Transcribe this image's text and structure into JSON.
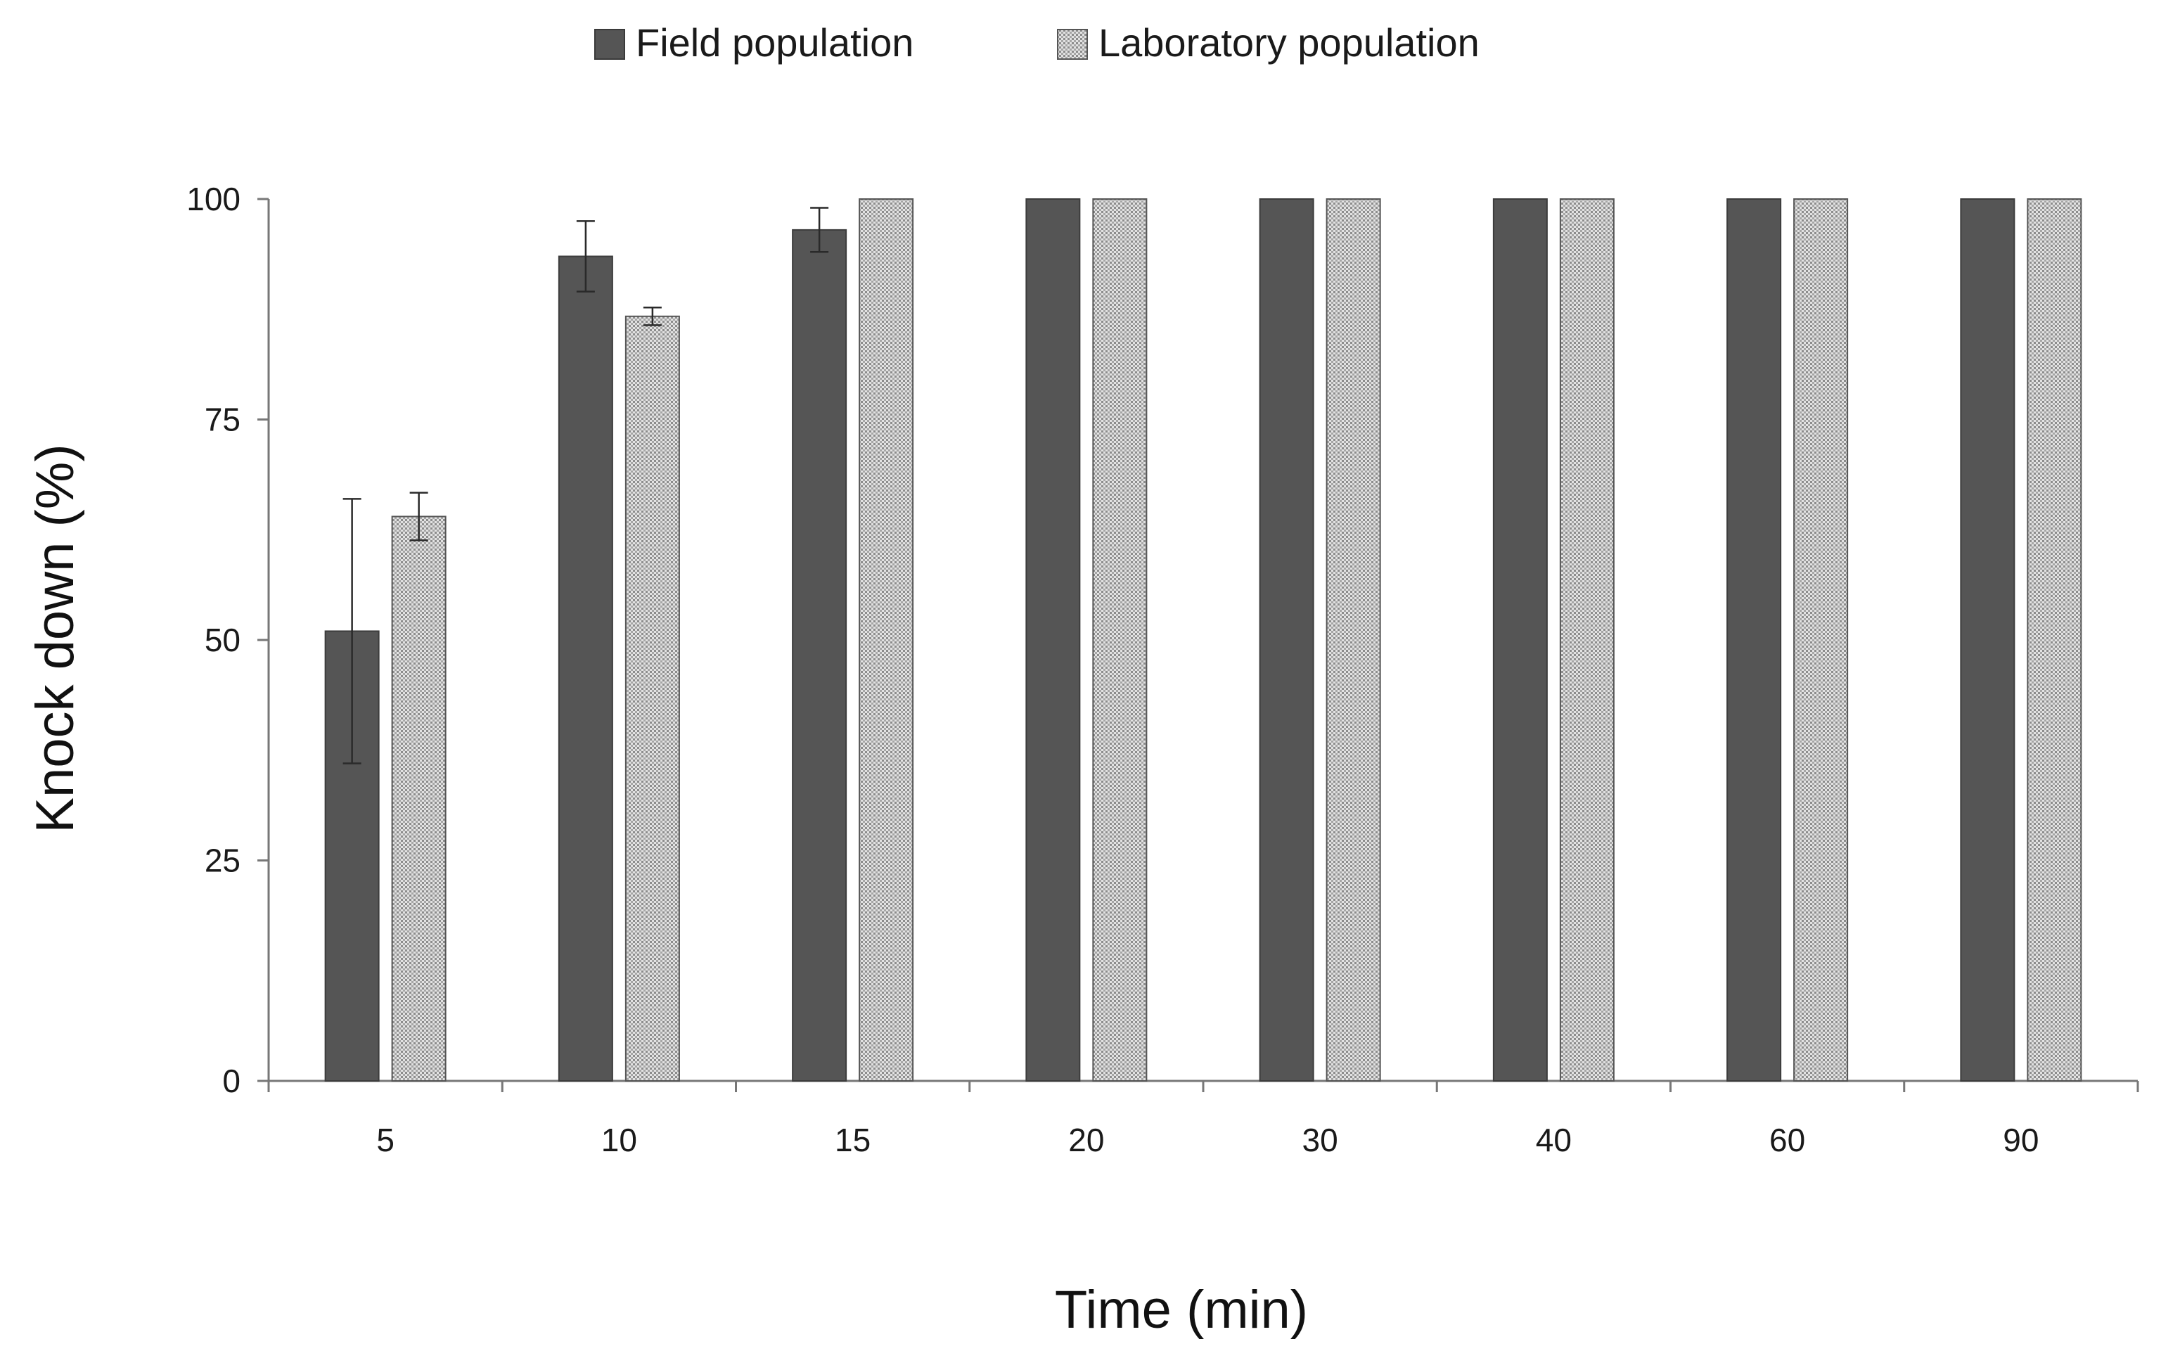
{
  "chart_data": {
    "type": "bar",
    "title": "",
    "xlabel": "Time (min)",
    "ylabel": "Knock down (%)",
    "ylim": [
      0,
      100
    ],
    "yticks": [
      0,
      25,
      50,
      75,
      100
    ],
    "grid": false,
    "legend_position": "top-center",
    "categories": [
      "5",
      "10",
      "15",
      "20",
      "30",
      "40",
      "60",
      "90"
    ],
    "series": [
      {
        "name": "Field population",
        "color": "#555555",
        "pattern": "solid",
        "values": [
          51,
          93.5,
          96.5,
          100,
          100,
          100,
          100,
          100
        ],
        "errors": [
          15,
          4,
          2.5,
          0,
          0,
          0,
          0,
          0
        ]
      },
      {
        "name": "Laboratory population",
        "color": "#c8c8c8",
        "pattern": "dotted",
        "values": [
          64,
          86.7,
          100,
          100,
          100,
          100,
          100,
          100
        ],
        "errors": [
          2.7,
          1,
          0,
          0,
          0,
          0,
          0,
          0
        ]
      }
    ]
  }
}
